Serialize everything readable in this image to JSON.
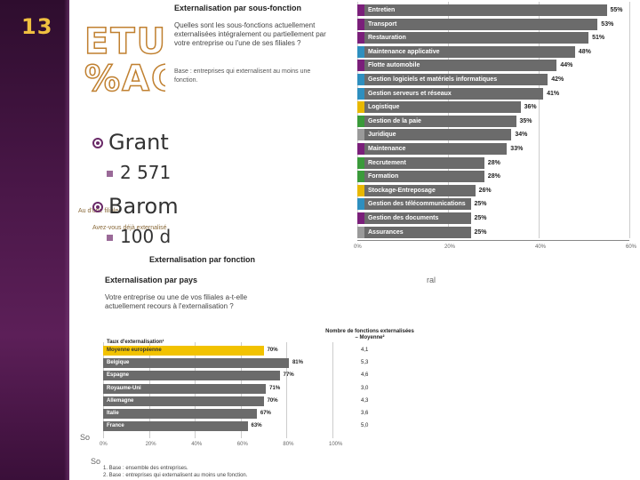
{
  "slide": {
    "number": "13",
    "title_line1": "ETUDE",
    "title_line2": "%AGE",
    "bullets": [
      {
        "text": "Grant",
        "sub": "2 571"
      },
      {
        "text": "Barom",
        "sub": "100 d"
      }
    ],
    "behind_text": [
      "Au d'une filiale",
      "Avez-vous déjà externalisé"
    ]
  },
  "top_panel": {
    "heading": "Externalisation par sous-fonction",
    "question": "Quelles sont les sous-fonctions actuellement externalisées intégralement ou partiellement par votre entreprise ou l'une de ses filiales ?",
    "base_note": "Base : entreprises qui externalisent au moins une fonction.",
    "side_source": "Sou"
  },
  "bottom_header": "Externalisation par fonction",
  "bottom_panel": {
    "heading": "Externalisation par pays",
    "question": "Votre entreprise ou une de vos filiales a-t-elle actuellement recours à l'externalisation ?",
    "col1_header": "Taux d'externalisation¹",
    "col2_header": "Nombre de fonctions externalisées – Moyenne²",
    "footnote1": "1. Base : ensemble des entreprises.",
    "footnote2": "2. Base : entreprises qui externalisent au moins une fonction.",
    "left_source": "So",
    "left_source2": "So",
    "right_fragment": "ral"
  },
  "chart_data": [
    {
      "type": "bar",
      "orientation": "horizontal",
      "title": "Externalisation par sous-fonction",
      "categories": [
        "Entretien",
        "Transport",
        "Restauration",
        "Maintenance applicative",
        "Flotte automobile",
        "Gestion logiciels et matériels informatiques",
        "Gestion serveurs et réseaux",
        "Logistique",
        "Gestion de la paie",
        "Juridique",
        "Maintenance",
        "Recrutement",
        "Formation",
        "Stockage-Entreposage",
        "Gestion des télécommunications",
        "Gestion des documents",
        "Assurances"
      ],
      "values": [
        55,
        53,
        51,
        48,
        44,
        42,
        41,
        36,
        35,
        34,
        33,
        28,
        28,
        26,
        25,
        25,
        25
      ],
      "value_labels": [
        "55%",
        "53%",
        "51%",
        "48%",
        "44%",
        "42%",
        "41%",
        "36%",
        "35%",
        "34%",
        "33%",
        "28%",
        "28%",
        "26%",
        "25%",
        "25%",
        "25%"
      ],
      "swatch_colors": [
        "#7a1f7a",
        "#7a1f7a",
        "#7a1f7a",
        "#2e8fbf",
        "#7a1f7a",
        "#2e8fbf",
        "#2e8fbf",
        "#e8b800",
        "#3a9a3a",
        "#9a9a9a",
        "#7a1f7a",
        "#3a9a3a",
        "#3a9a3a",
        "#e8b800",
        "#2e8fbf",
        "#7a1f7a",
        "#9a9a9a"
      ],
      "bar_color": "#6b6b6b",
      "xlim": [
        0,
        60
      ],
      "xticks": [
        "0%",
        "20%",
        "40%",
        "60%"
      ]
    },
    {
      "type": "bar",
      "orientation": "horizontal",
      "title": "Externalisation par pays",
      "categories": [
        "Moyenne européenne",
        "Belgique",
        "Espagne",
        "Royaume-Uni",
        "Allemagne",
        "Italie",
        "France"
      ],
      "values": [
        70,
        81,
        77,
        71,
        70,
        67,
        63
      ],
      "value_labels": [
        "70%",
        "81%",
        "77%",
        "71%",
        "70%",
        "67%",
        "63%"
      ],
      "highlight_color": "#f2c200",
      "bar_color": "#6b6b6b",
      "xlim": [
        0,
        100
      ],
      "xticks": [
        "0%",
        "20%",
        "40%",
        "60%",
        "80%",
        "100%"
      ],
      "average_functions": [
        "4,1",
        "5,3",
        "4,6",
        "3,0",
        "4,3",
        "3,6",
        "5,0"
      ]
    }
  ]
}
